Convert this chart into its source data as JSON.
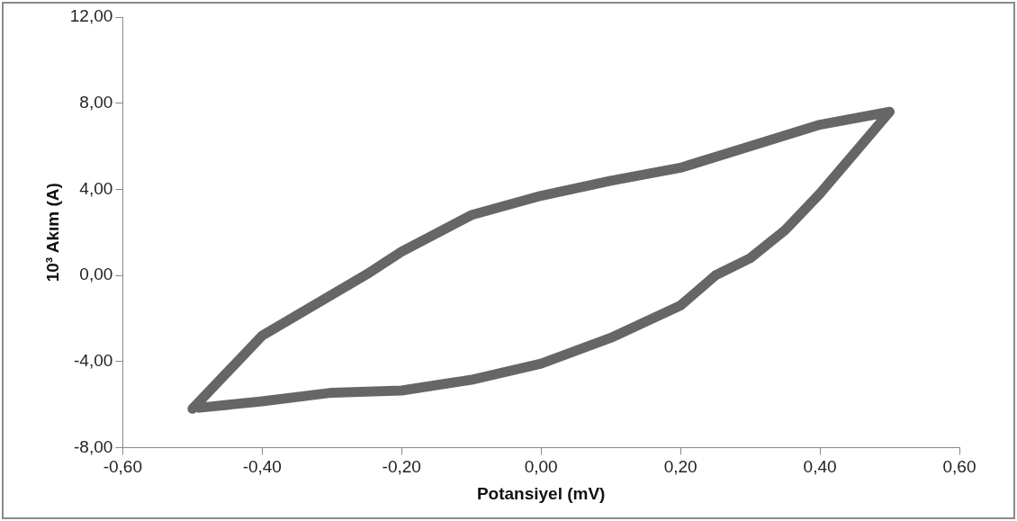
{
  "chart_data": {
    "type": "line",
    "xlabel": "Potansiyel (mV)",
    "ylabel": "10³ Akım (A)",
    "series": [
      {
        "color": "#666666",
        "x": [
          -0.5,
          -0.4,
          -0.3,
          -0.25,
          -0.2,
          -0.1,
          0,
          0.1,
          0.2,
          0.3,
          0.4,
          0.5,
          0.4,
          0.35,
          0.3,
          0.25,
          0.2,
          0.1,
          0,
          -0.1,
          -0.2,
          -0.3,
          -0.4,
          -0.49
        ],
        "values": [
          -6.2,
          -2.8,
          -0.9,
          0.05,
          1.1,
          2.8,
          3.7,
          4.4,
          5.0,
          6.0,
          7.0,
          7.6,
          3.8,
          2.1,
          0.8,
          0,
          -1.4,
          -2.9,
          -4.1,
          -4.85,
          -5.35,
          -5.45,
          -5.85,
          -6.15
        ]
      }
    ],
    "xlim": [
      -0.6,
      0.6
    ],
    "ylim": [
      -8,
      12
    ],
    "xticks": [
      {
        "value": -0.6,
        "label": "-0,60"
      },
      {
        "value": -0.4,
        "label": "-0,40"
      },
      {
        "value": -0.2,
        "label": "-0,20"
      },
      {
        "value": 0,
        "label": "0,00"
      },
      {
        "value": 0.2,
        "label": "0,20"
      },
      {
        "value": 0.4,
        "label": "0,40"
      },
      {
        "value": 0.6,
        "label": "0,60"
      }
    ],
    "yticks": [
      {
        "value": -8,
        "label": "-8,00"
      },
      {
        "value": -4,
        "label": "-4,00"
      },
      {
        "value": 0,
        "label": "0,00"
      },
      {
        "value": 4,
        "label": "4,00"
      },
      {
        "value": 8,
        "label": "8,00"
      },
      {
        "value": 12,
        "label": "12,00"
      }
    ],
    "grid": false,
    "legend": false,
    "marker": "none",
    "line_style": "solid"
  }
}
